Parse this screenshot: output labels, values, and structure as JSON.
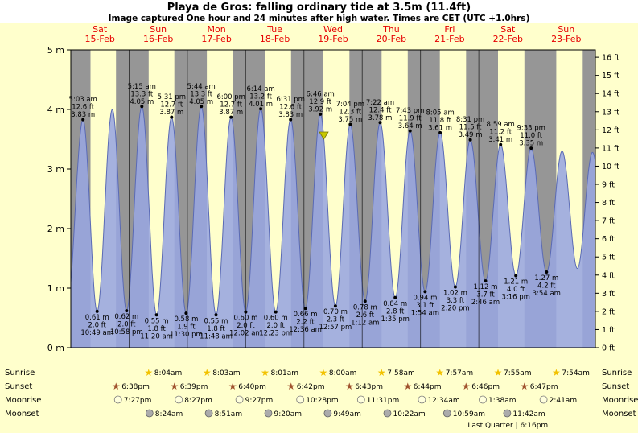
{
  "page": {
    "title": "Playa de Gros: falling ordinary tide at 3.5m (11.4ft)",
    "subtitle": "Image captured One hour and 24 minutes after high water. Times are CET (UTC +1.0hrs)"
  },
  "colors": {
    "page_bg": "#ffffcc",
    "title_bg": "#ffffff",
    "day_band": "#ffffcc",
    "night_band": "#969696",
    "tide_fill": "#98a6e0",
    "tide_stroke": "#5a6ab5",
    "day_label": "#e60000",
    "marker": "#c8c800",
    "text": "#000000"
  },
  "chart_data": {
    "type": "area",
    "title": "Playa de Gros tide forecast",
    "x": {
      "total_hours": 216,
      "days": [
        {
          "name": "Sat",
          "date": "15-Feb"
        },
        {
          "name": "Sun",
          "date": "16-Feb"
        },
        {
          "name": "Mon",
          "date": "17-Feb"
        },
        {
          "name": "Tue",
          "date": "18-Feb"
        },
        {
          "name": "Wed",
          "date": "19-Feb"
        },
        {
          "name": "Thu",
          "date": "20-Feb"
        },
        {
          "name": "Fri",
          "date": "21-Feb"
        },
        {
          "name": "Sat",
          "date": "22-Feb"
        },
        {
          "name": "Sun",
          "date": "23-Feb"
        }
      ]
    },
    "y_left": {
      "unit": "m",
      "min": 0,
      "max": 5,
      "step": 1
    },
    "y_right": {
      "unit": "ft",
      "min": 0,
      "max": 16,
      "step": 1
    },
    "night_bands_hours": [
      [
        0,
        8.1
      ],
      [
        18.63,
        32.07
      ],
      [
        42.65,
        56.05
      ],
      [
        66.67,
        80.02
      ],
      [
        90.7,
        104.0
      ],
      [
        114.72,
        127.97
      ],
      [
        138.73,
        151.95
      ],
      [
        162.77,
        175.92
      ],
      [
        186.78,
        199.9
      ],
      [
        210.8,
        216
      ]
    ],
    "extremes": [
      {
        "t": -1.6,
        "m": 0.65,
        "type": "low"
      },
      {
        "t": 5.05,
        "m": 3.83,
        "type": "high",
        "lines": [
          "5:03 am",
          "12.6 ft",
          "3.83 m"
        ]
      },
      {
        "t": 10.82,
        "m": 0.61,
        "type": "low",
        "lines": [
          "0.61 m",
          "2.0 ft",
          "10:49 am"
        ]
      },
      {
        "t": 17.1,
        "m": 4.0,
        "type": "high"
      },
      {
        "t": 22.97,
        "m": 0.62,
        "type": "low",
        "lines": [
          "0.62 m",
          "2.0 ft",
          "10:58 pm"
        ]
      },
      {
        "t": 29.25,
        "m": 4.05,
        "type": "high",
        "lines": [
          "5:15 am",
          "13.3 ft",
          "4.05 m"
        ]
      },
      {
        "t": 35.33,
        "m": 0.55,
        "type": "low",
        "lines": [
          "0.55 m",
          "1.8 ft",
          "11:20 am"
        ]
      },
      {
        "t": 41.52,
        "m": 3.87,
        "type": "high",
        "lines": [
          "5:31 pm",
          "12.7 ft",
          "3.87 m"
        ]
      },
      {
        "t": 47.5,
        "m": 0.58,
        "type": "low",
        "lines": [
          "0.58 m",
          "1.9 ft",
          "11:30 pm"
        ]
      },
      {
        "t": 53.73,
        "m": 4.05,
        "type": "high",
        "lines": [
          "5:44 am",
          "13.3 ft",
          "4.05 m"
        ]
      },
      {
        "t": 59.8,
        "m": 0.55,
        "type": "low",
        "lines": [
          "0.55 m",
          "1.8 ft",
          "11:48 am"
        ]
      },
      {
        "t": 66.0,
        "m": 3.87,
        "type": "high",
        "lines": [
          "6:00 pm",
          "12.7 ft",
          "3.87 m"
        ]
      },
      {
        "t": 72.03,
        "m": 0.6,
        "type": "low",
        "lines": [
          "0.60 m",
          "2.0 ft",
          "12:02 am"
        ]
      },
      {
        "t": 78.23,
        "m": 4.01,
        "type": "high",
        "lines": [
          "6:14 am",
          "13.2 ft",
          "4.01 m"
        ]
      },
      {
        "t": 84.38,
        "m": 0.6,
        "type": "low",
        "lines": [
          "0.60 m",
          "2.0 ft",
          "12:23 pm"
        ]
      },
      {
        "t": 90.52,
        "m": 3.83,
        "type": "high",
        "lines": [
          "6:31 pm",
          "12.6 ft",
          "3.83 m"
        ]
      },
      {
        "t": 96.6,
        "m": 0.66,
        "type": "low",
        "lines": [
          "0.66 m",
          "2.2 ft",
          "12:36 am"
        ]
      },
      {
        "t": 102.77,
        "m": 3.92,
        "type": "high",
        "lines": [
          "6:46 am",
          "12.9 ft",
          "3.92 m"
        ]
      },
      {
        "t": 108.95,
        "m": 0.7,
        "type": "low",
        "lines": [
          "0.70 m",
          "2.3 ft",
          "12:57 pm"
        ]
      },
      {
        "t": 115.07,
        "m": 3.75,
        "type": "high",
        "lines": [
          "7:04 pm",
          "12.3 ft",
          "3.75 m"
        ]
      },
      {
        "t": 121.2,
        "m": 0.78,
        "type": "low",
        "lines": [
          "0.78 m",
          "2.6 ft",
          "1:12 am"
        ]
      },
      {
        "t": 127.37,
        "m": 3.78,
        "type": "high",
        "lines": [
          "7:22 am",
          "12.4 ft",
          "3.78 m"
        ]
      },
      {
        "t": 133.58,
        "m": 0.84,
        "type": "low",
        "lines": [
          "0.84 m",
          "2.8 ft",
          "1:35 pm"
        ]
      },
      {
        "t": 139.72,
        "m": 3.64,
        "type": "high",
        "lines": [
          "7:43 pm",
          "11.9 ft",
          "3.64 m"
        ]
      },
      {
        "t": 145.9,
        "m": 0.94,
        "type": "low",
        "lines": [
          "0.94 m",
          "3.1 ft",
          "1:54 am"
        ]
      },
      {
        "t": 152.08,
        "m": 3.61,
        "type": "high",
        "lines": [
          "8:05 am",
          "11.8 ft",
          "3.61 m"
        ]
      },
      {
        "t": 158.33,
        "m": 1.02,
        "type": "low",
        "lines": [
          "1.02 m",
          "3.3 ft",
          "2:20 pm"
        ]
      },
      {
        "t": 164.52,
        "m": 3.49,
        "type": "high",
        "lines": [
          "8:31 pm",
          "11.5 ft",
          "3.49 m"
        ]
      },
      {
        "t": 170.77,
        "m": 1.12,
        "type": "low",
        "lines": [
          "1.12 m",
          "3.7 ft",
          "2:46 am"
        ]
      },
      {
        "t": 176.98,
        "m": 3.41,
        "type": "high",
        "lines": [
          "8:59 am",
          "11.2 ft",
          "3.41 m"
        ]
      },
      {
        "t": 183.27,
        "m": 1.21,
        "type": "low",
        "lines": [
          "1.21 m",
          "4.0 ft",
          "3:16 pm"
        ]
      },
      {
        "t": 189.55,
        "m": 3.35,
        "type": "high",
        "lines": [
          "9:33 pm",
          "11.0 ft",
          "3.35 m"
        ]
      },
      {
        "t": 195.9,
        "m": 1.27,
        "type": "low",
        "lines": [
          "1.27 m",
          "4.2 ft",
          "3:54 am"
        ]
      },
      {
        "t": 202.3,
        "m": 3.3,
        "type": "high"
      },
      {
        "t": 208.6,
        "m": 1.33,
        "type": "low"
      },
      {
        "t": 214.8,
        "m": 3.28,
        "type": "high"
      },
      {
        "t": 221.0,
        "m": 1.4,
        "type": "low"
      }
    ],
    "current_marker": {
      "t": 104.2,
      "m": 3.5
    }
  },
  "astro": {
    "row_labels": [
      "Sunrise",
      "Sunset",
      "Moonrise",
      "Moonset"
    ],
    "sunrise": [
      {
        "t": 32.07,
        "label": "8:04am"
      },
      {
        "t": 56.05,
        "label": "8:03am"
      },
      {
        "t": 80.02,
        "label": "8:01am"
      },
      {
        "t": 104.0,
        "label": "8:00am"
      },
      {
        "t": 127.97,
        "label": "7:58am"
      },
      {
        "t": 151.95,
        "label": "7:57am"
      },
      {
        "t": 175.92,
        "label": "7:55am"
      },
      {
        "t": 199.9,
        "label": "7:54am"
      }
    ],
    "sunset": [
      {
        "t": 18.63,
        "label": "6:38pm"
      },
      {
        "t": 42.65,
        "label": "6:39pm"
      },
      {
        "t": 66.67,
        "label": "6:40pm"
      },
      {
        "t": 90.7,
        "label": "6:42pm"
      },
      {
        "t": 114.72,
        "label": "6:43pm"
      },
      {
        "t": 138.73,
        "label": "6:44pm"
      },
      {
        "t": 162.77,
        "label": "6:46pm"
      },
      {
        "t": 186.78,
        "label": "6:47pm"
      }
    ],
    "moonrise": [
      {
        "t": 19.45,
        "label": "7:27pm"
      },
      {
        "t": 44.45,
        "label": "8:27pm"
      },
      {
        "t": 69.45,
        "label": "9:27pm"
      },
      {
        "t": 94.47,
        "label": "10:28pm"
      },
      {
        "t": 119.52,
        "label": "11:31pm"
      },
      {
        "t": 144.57,
        "label": "12:34am"
      },
      {
        "t": 169.63,
        "label": "1:38am"
      },
      {
        "t": 194.68,
        "label": "2:41am"
      }
    ],
    "moonset": [
      {
        "t": 32.4,
        "label": "8:24am"
      },
      {
        "t": 56.85,
        "label": "8:51am"
      },
      {
        "t": 81.33,
        "label": "9:20am"
      },
      {
        "t": 105.82,
        "label": "9:49am"
      },
      {
        "t": 130.37,
        "label": "10:22am"
      },
      {
        "t": 154.98,
        "label": "10:59am"
      },
      {
        "t": 179.7,
        "label": "11:42am"
      }
    ],
    "moon_phase": {
      "day_index": 7,
      "label": "Last Quarter | 6:16pm"
    }
  }
}
